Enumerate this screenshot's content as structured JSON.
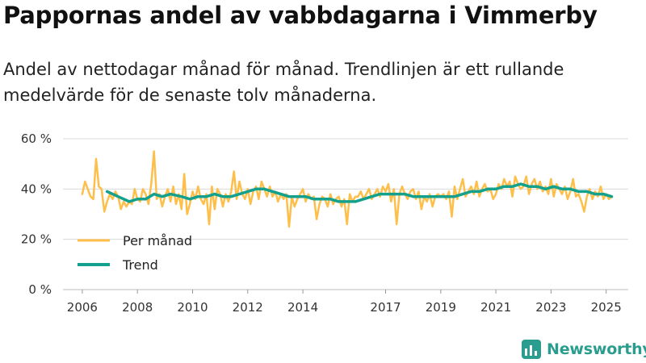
{
  "title": "Pappornas andel av vabbdagarna i Vimmerby",
  "subtitle": "Andel av nettodagar månad för månad. Trendlinjen är ett rullande medelvärde för de senaste tolv månaderna.",
  "brand": {
    "name": "Newsworthy",
    "icon": "newsworthy-logo-icon"
  },
  "colors": {
    "monthly": "#fdbf4a",
    "trend": "#13a08c",
    "grid": "#d8d8d8"
  },
  "chart_data": {
    "type": "line",
    "title": "Pappornas andel av vabbdagarna i Vimmerby",
    "xlabel": "",
    "ylabel": "",
    "ylim": [
      0,
      60
    ],
    "y_ticks": [
      {
        "value": 0,
        "label": "0 %"
      },
      {
        "value": 20,
        "label": "20 %"
      },
      {
        "value": 40,
        "label": "40 %"
      },
      {
        "value": 60,
        "label": "60 %"
      }
    ],
    "x_ticks": [
      {
        "value": 2006,
        "label": "2006"
      },
      {
        "value": 2008,
        "label": "2008"
      },
      {
        "value": 2010,
        "label": "2010"
      },
      {
        "value": 2012,
        "label": "2012"
      },
      {
        "value": 2014,
        "label": "2014"
      },
      {
        "value": 2017,
        "label": "2017"
      },
      {
        "value": 2019,
        "label": "2019"
      },
      {
        "value": 2021,
        "label": "2021"
      },
      {
        "value": 2023,
        "label": "2023"
      },
      {
        "value": 2025,
        "label": "2025"
      }
    ],
    "legend": {
      "position": "bottom-left"
    },
    "series": [
      {
        "name": "Per månad",
        "color": "#fdbf4a",
        "points": [
          [
            2006.0,
            38
          ],
          [
            2006.1,
            43
          ],
          [
            2006.2,
            40
          ],
          [
            2006.3,
            37
          ],
          [
            2006.4,
            36
          ],
          [
            2006.5,
            52
          ],
          [
            2006.6,
            41
          ],
          [
            2006.7,
            40
          ],
          [
            2006.8,
            31
          ],
          [
            2006.9,
            35
          ],
          [
            2007.0,
            38
          ],
          [
            2007.1,
            36
          ],
          [
            2007.2,
            39
          ],
          [
            2007.3,
            37
          ],
          [
            2007.4,
            32
          ],
          [
            2007.5,
            35
          ],
          [
            2007.6,
            33
          ],
          [
            2007.7,
            35
          ],
          [
            2007.8,
            34
          ],
          [
            2007.9,
            40
          ],
          [
            2008.0,
            36
          ],
          [
            2008.1,
            35
          ],
          [
            2008.2,
            40
          ],
          [
            2008.3,
            38
          ],
          [
            2008.4,
            34
          ],
          [
            2008.5,
            42
          ],
          [
            2008.6,
            55
          ],
          [
            2008.7,
            36
          ],
          [
            2008.8,
            38
          ],
          [
            2008.9,
            33
          ],
          [
            2009.0,
            37
          ],
          [
            2009.1,
            40
          ],
          [
            2009.2,
            35
          ],
          [
            2009.3,
            41
          ],
          [
            2009.4,
            34
          ],
          [
            2009.5,
            38
          ],
          [
            2009.6,
            32
          ],
          [
            2009.7,
            46
          ],
          [
            2009.8,
            30
          ],
          [
            2009.9,
            34
          ],
          [
            2010.0,
            39
          ],
          [
            2010.1,
            36
          ],
          [
            2010.2,
            41
          ],
          [
            2010.3,
            36
          ],
          [
            2010.4,
            34
          ],
          [
            2010.5,
            38
          ],
          [
            2010.6,
            26
          ],
          [
            2010.7,
            41
          ],
          [
            2010.8,
            32
          ],
          [
            2010.9,
            40
          ],
          [
            2011.0,
            38
          ],
          [
            2011.1,
            33
          ],
          [
            2011.2,
            38
          ],
          [
            2011.3,
            35
          ],
          [
            2011.4,
            39
          ],
          [
            2011.5,
            47
          ],
          [
            2011.6,
            36
          ],
          [
            2011.7,
            43
          ],
          [
            2011.8,
            38
          ],
          [
            2011.9,
            36
          ],
          [
            2012.0,
            40
          ],
          [
            2012.1,
            34
          ],
          [
            2012.2,
            39
          ],
          [
            2012.3,
            41
          ],
          [
            2012.4,
            36
          ],
          [
            2012.5,
            43
          ],
          [
            2012.6,
            40
          ],
          [
            2012.7,
            37
          ],
          [
            2012.8,
            41
          ],
          [
            2012.9,
            37
          ],
          [
            2013.0,
            39
          ],
          [
            2013.1,
            35
          ],
          [
            2013.2,
            38
          ],
          [
            2013.3,
            36
          ],
          [
            2013.4,
            38
          ],
          [
            2013.5,
            25
          ],
          [
            2013.6,
            37
          ],
          [
            2013.7,
            33
          ],
          [
            2013.8,
            36
          ],
          [
            2013.9,
            38
          ],
          [
            2014.0,
            40
          ],
          [
            2014.1,
            35
          ],
          [
            2014.2,
            38
          ],
          [
            2014.3,
            36
          ],
          [
            2014.4,
            37
          ],
          [
            2014.5,
            28
          ],
          [
            2014.6,
            34
          ],
          [
            2014.7,
            37
          ],
          [
            2014.8,
            36
          ],
          [
            2014.9,
            33
          ],
          [
            2015.0,
            38
          ],
          [
            2015.1,
            34
          ],
          [
            2015.2,
            36
          ],
          [
            2015.3,
            37
          ],
          [
            2015.4,
            33
          ],
          [
            2015.5,
            36
          ],
          [
            2015.6,
            26
          ],
          [
            2015.7,
            38
          ],
          [
            2015.8,
            35
          ],
          [
            2015.9,
            37
          ],
          [
            2016.0,
            37
          ],
          [
            2016.1,
            39
          ],
          [
            2016.2,
            36
          ],
          [
            2016.3,
            38
          ],
          [
            2016.4,
            40
          ],
          [
            2016.5,
            36
          ],
          [
            2016.6,
            38
          ],
          [
            2016.7,
            40
          ],
          [
            2016.8,
            37
          ],
          [
            2016.9,
            41
          ],
          [
            2017.0,
            39
          ],
          [
            2017.1,
            42
          ],
          [
            2017.2,
            35
          ],
          [
            2017.3,
            40
          ],
          [
            2017.4,
            26
          ],
          [
            2017.5,
            38
          ],
          [
            2017.6,
            41
          ],
          [
            2017.7,
            38
          ],
          [
            2017.8,
            36
          ],
          [
            2017.9,
            39
          ],
          [
            2018.0,
            40
          ],
          [
            2018.1,
            36
          ],
          [
            2018.2,
            39
          ],
          [
            2018.3,
            32
          ],
          [
            2018.4,
            37
          ],
          [
            2018.5,
            35
          ],
          [
            2018.6,
            38
          ],
          [
            2018.7,
            33
          ],
          [
            2018.8,
            37
          ],
          [
            2018.9,
            38
          ],
          [
            2019.0,
            37
          ],
          [
            2019.1,
            38
          ],
          [
            2019.2,
            36
          ],
          [
            2019.3,
            39
          ],
          [
            2019.4,
            29
          ],
          [
            2019.5,
            41
          ],
          [
            2019.6,
            36
          ],
          [
            2019.7,
            40
          ],
          [
            2019.8,
            44
          ],
          [
            2019.9,
            37
          ],
          [
            2020.0,
            39
          ],
          [
            2020.1,
            41
          ],
          [
            2020.2,
            38
          ],
          [
            2020.3,
            43
          ],
          [
            2020.4,
            37
          ],
          [
            2020.5,
            40
          ],
          [
            2020.6,
            42
          ],
          [
            2020.7,
            39
          ],
          [
            2020.8,
            40
          ],
          [
            2020.9,
            36
          ],
          [
            2021.0,
            38
          ],
          [
            2021.1,
            42
          ],
          [
            2021.2,
            40
          ],
          [
            2021.3,
            44
          ],
          [
            2021.4,
            41
          ],
          [
            2021.5,
            43
          ],
          [
            2021.6,
            37
          ],
          [
            2021.7,
            45
          ],
          [
            2021.8,
            42
          ],
          [
            2021.9,
            40
          ],
          [
            2022.0,
            41
          ],
          [
            2022.1,
            45
          ],
          [
            2022.2,
            38
          ],
          [
            2022.3,
            42
          ],
          [
            2022.4,
            44
          ],
          [
            2022.5,
            40
          ],
          [
            2022.6,
            43
          ],
          [
            2022.7,
            39
          ],
          [
            2022.8,
            41
          ],
          [
            2022.9,
            38
          ],
          [
            2023.0,
            44
          ],
          [
            2023.1,
            37
          ],
          [
            2023.2,
            42
          ],
          [
            2023.3,
            40
          ],
          [
            2023.4,
            38
          ],
          [
            2023.5,
            41
          ],
          [
            2023.6,
            36
          ],
          [
            2023.7,
            39
          ],
          [
            2023.8,
            44
          ],
          [
            2023.9,
            37
          ],
          [
            2024.0,
            38
          ],
          [
            2024.1,
            35
          ],
          [
            2024.2,
            31
          ],
          [
            2024.3,
            37
          ],
          [
            2024.4,
            40
          ],
          [
            2024.5,
            36
          ],
          [
            2024.6,
            39
          ],
          [
            2024.7,
            37
          ],
          [
            2024.8,
            41
          ],
          [
            2024.9,
            36
          ],
          [
            2025.0,
            38
          ],
          [
            2025.1,
            36
          ],
          [
            2025.2,
            37
          ]
        ]
      },
      {
        "name": "Trend",
        "color": "#13a08c",
        "points": [
          [
            2006.9,
            39
          ],
          [
            2007.3,
            37
          ],
          [
            2007.7,
            35
          ],
          [
            2008.0,
            36
          ],
          [
            2008.3,
            36
          ],
          [
            2008.6,
            38
          ],
          [
            2008.9,
            37
          ],
          [
            2009.2,
            38
          ],
          [
            2009.6,
            37
          ],
          [
            2009.9,
            36
          ],
          [
            2010.2,
            37
          ],
          [
            2010.5,
            37
          ],
          [
            2010.8,
            38
          ],
          [
            2011.1,
            37
          ],
          [
            2011.4,
            37
          ],
          [
            2011.7,
            38
          ],
          [
            2012.0,
            39
          ],
          [
            2012.3,
            40
          ],
          [
            2012.6,
            40
          ],
          [
            2012.9,
            39
          ],
          [
            2013.2,
            38
          ],
          [
            2013.5,
            37
          ],
          [
            2013.8,
            37
          ],
          [
            2014.1,
            37
          ],
          [
            2014.4,
            36
          ],
          [
            2014.7,
            36
          ],
          [
            2015.0,
            36
          ],
          [
            2015.3,
            35
          ],
          [
            2015.6,
            35
          ],
          [
            2015.9,
            35
          ],
          [
            2016.2,
            36
          ],
          [
            2016.5,
            37
          ],
          [
            2016.8,
            38
          ],
          [
            2017.1,
            38
          ],
          [
            2017.4,
            38
          ],
          [
            2017.7,
            38
          ],
          [
            2018.0,
            37
          ],
          [
            2018.3,
            37
          ],
          [
            2018.6,
            37
          ],
          [
            2018.9,
            37
          ],
          [
            2019.2,
            37
          ],
          [
            2019.5,
            37
          ],
          [
            2019.8,
            38
          ],
          [
            2020.1,
            39
          ],
          [
            2020.4,
            39
          ],
          [
            2020.7,
            40
          ],
          [
            2021.0,
            40
          ],
          [
            2021.3,
            41
          ],
          [
            2021.6,
            41
          ],
          [
            2021.9,
            42
          ],
          [
            2022.2,
            41
          ],
          [
            2022.5,
            41
          ],
          [
            2022.8,
            40
          ],
          [
            2023.1,
            41
          ],
          [
            2023.4,
            40
          ],
          [
            2023.7,
            40
          ],
          [
            2024.0,
            39
          ],
          [
            2024.3,
            39
          ],
          [
            2024.6,
            38
          ],
          [
            2024.9,
            38
          ],
          [
            2025.2,
            37
          ]
        ]
      }
    ]
  }
}
